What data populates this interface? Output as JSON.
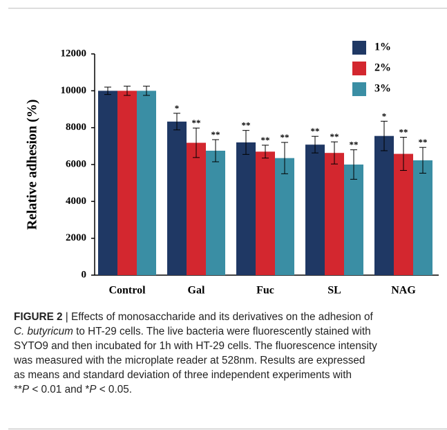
{
  "chart_data": {
    "type": "bar",
    "ylabel": "Relative adhesion (%)",
    "categories": [
      "Control",
      "Gal",
      "Fuc",
      "SL",
      "NAG"
    ],
    "ylim": [
      0,
      12000
    ],
    "yticks": [
      0,
      2000,
      4000,
      6000,
      8000,
      10000,
      12000
    ],
    "legend": "upper right",
    "series": [
      {
        "name": "1%",
        "color": "#1f3864",
        "values": [
          10000,
          8330,
          7200,
          7080,
          7550
        ],
        "errors": [
          200,
          450,
          650,
          450,
          800
        ],
        "labels": [
          null,
          "*",
          "**",
          "**",
          "*"
        ]
      },
      {
        "name": "2%",
        "color": "#d3272f",
        "values": [
          10000,
          7180,
          6700,
          6630,
          6580
        ],
        "errors": [
          250,
          800,
          350,
          600,
          900
        ],
        "labels": [
          null,
          "**",
          "**",
          "**",
          "**"
        ]
      },
      {
        "name": "3%",
        "color": "#3a8ea4",
        "values": [
          10000,
          6750,
          6350,
          6000,
          6230
        ],
        "errors": [
          250,
          600,
          850,
          800,
          700
        ],
        "labels": [
          null,
          "**",
          "**",
          "**",
          "**"
        ]
      }
    ]
  },
  "caption": {
    "lines": [
      [
        {
          "text": "FIGURE 2",
          "style": "bold"
        },
        {
          "text": " | Effects of monosaccharide and its derivatives on the adhesion of",
          "style": "normal"
        }
      ],
      [
        {
          "text": "C. butyricum",
          "style": "italic"
        },
        {
          "text": " to HT-29 cells. The live bacteria were fluorescently stained with",
          "style": "normal"
        }
      ],
      [
        {
          "text": "SYTO9 and then incubated for 1h with HT-29 cells. The fluorescence intensity",
          "style": "normal"
        }
      ],
      [
        {
          "text": "was measured with the microplate reader at 528nm. Results are expressed",
          "style": "normal"
        }
      ],
      [
        {
          "text": "as means and standard deviation of three independent experiments with",
          "style": "normal"
        }
      ],
      [
        {
          "text": "**",
          "style": "normal"
        },
        {
          "text": "P",
          "style": "italic"
        },
        {
          "text": " < 0.01 and *",
          "style": "normal"
        },
        {
          "text": "P",
          "style": "italic"
        },
        {
          "text": " < 0.05.",
          "style": "normal"
        }
      ]
    ]
  }
}
